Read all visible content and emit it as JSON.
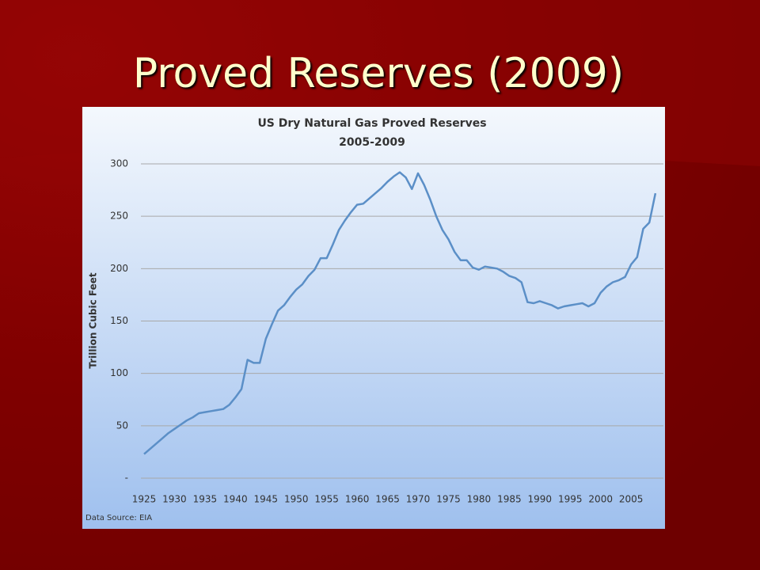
{
  "title": "Proved Reserves (2009)",
  "chart_data": {
    "type": "line",
    "title": "US Dry Natural Gas Proved Reserves",
    "subtitle": "2005-2009",
    "y_label": "Trillion Cubic Feet",
    "note": "Data Source: EIA",
    "x": [
      1925,
      1926,
      1927,
      1928,
      1929,
      1930,
      1931,
      1932,
      1933,
      1934,
      1935,
      1936,
      1937,
      1938,
      1939,
      1940,
      1941,
      1942,
      1943,
      1944,
      1945,
      1946,
      1947,
      1948,
      1949,
      1950,
      1951,
      1952,
      1953,
      1954,
      1955,
      1956,
      1957,
      1958,
      1959,
      1960,
      1961,
      1962,
      1963,
      1964,
      1965,
      1966,
      1967,
      1968,
      1969,
      1970,
      1971,
      1972,
      1973,
      1974,
      1975,
      1976,
      1977,
      1978,
      1979,
      1980,
      1981,
      1982,
      1983,
      1984,
      1985,
      1986,
      1987,
      1988,
      1989,
      1990,
      1991,
      1992,
      1993,
      1994,
      1995,
      1996,
      1997,
      1998,
      1999,
      2000,
      2001,
      2002,
      2003,
      2004,
      2005,
      2006,
      2007,
      2008,
      2009
    ],
    "series": [
      {
        "name": "Proved Reserves",
        "color": "#5b8fc7",
        "values": [
          23,
          28,
          33,
          38,
          43,
          47,
          51,
          55,
          58,
          62,
          63,
          64,
          65,
          66,
          70,
          77,
          85,
          113,
          110,
          110,
          133,
          147,
          160,
          165,
          173,
          180,
          185,
          193,
          199,
          210,
          210,
          223,
          237,
          246,
          254,
          261,
          262,
          267,
          272,
          277,
          283,
          288,
          292,
          287,
          276,
          291,
          280,
          266,
          250,
          237,
          228,
          216,
          208,
          208,
          201,
          199,
          202,
          201,
          200,
          197,
          193,
          191,
          187,
          168,
          167,
          169,
          167,
          165,
          162,
          164,
          165,
          166,
          167,
          164,
          167,
          177,
          183,
          187,
          189,
          192,
          204,
          211,
          238,
          244,
          272
        ]
      }
    ],
    "xlim": [
      1924,
      2010
    ],
    "xticks": [
      1925,
      1930,
      1935,
      1940,
      1945,
      1950,
      1955,
      1960,
      1965,
      1970,
      1975,
      1980,
      1985,
      1990,
      1995,
      2000,
      2005
    ],
    "ylim": [
      0,
      300
    ],
    "yticks": [
      {
        "value": 0,
        "label": "-"
      },
      50,
      100,
      150,
      200,
      250,
      300
    ],
    "grid": true
  }
}
